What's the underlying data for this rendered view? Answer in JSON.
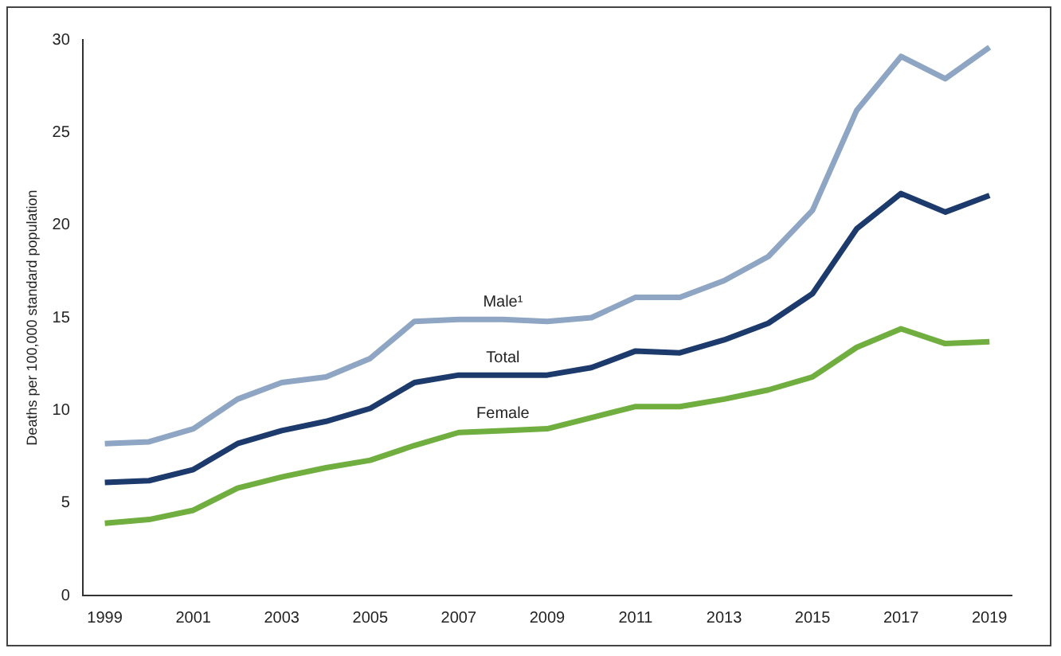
{
  "chart_data": {
    "type": "line",
    "ylabel": "Deaths per 100,000 standard population",
    "categories": [
      "1999",
      null,
      "2001",
      null,
      "2003",
      null,
      "2005",
      null,
      "2007",
      null,
      "2009",
      null,
      "2011",
      null,
      "2013",
      null,
      "2015",
      null,
      "2017",
      null,
      "2019"
    ],
    "series": [
      {
        "name": "Male¹",
        "color": "#8ea5c4",
        "values": [
          8.2,
          8.3,
          9.0,
          10.6,
          11.5,
          11.8,
          12.8,
          14.8,
          14.9,
          14.9,
          14.8,
          15.0,
          16.1,
          16.1,
          17.0,
          18.3,
          20.8,
          26.2,
          29.1,
          27.9,
          29.6
        ]
      },
      {
        "name": "Total",
        "color": "#1c3a6b",
        "values": [
          6.1,
          6.2,
          6.8,
          8.2,
          8.9,
          9.4,
          10.1,
          11.5,
          11.9,
          11.9,
          11.9,
          12.3,
          13.2,
          13.1,
          13.8,
          14.7,
          16.3,
          19.8,
          21.7,
          20.7,
          21.6
        ]
      },
      {
        "name": "Female",
        "color": "#6fae3f",
        "values": [
          3.9,
          4.1,
          4.6,
          5.8,
          6.4,
          6.9,
          7.3,
          8.1,
          8.8,
          8.9,
          9.0,
          9.6,
          10.2,
          10.2,
          10.6,
          11.1,
          11.8,
          13.4,
          14.4,
          13.6,
          13.7
        ]
      }
    ],
    "ylim": [
      0,
      30
    ],
    "yticks": [
      0,
      5,
      10,
      15,
      20,
      25,
      30
    ],
    "grid": false,
    "legend": false,
    "marker": "none",
    "line_style": "solid"
  }
}
